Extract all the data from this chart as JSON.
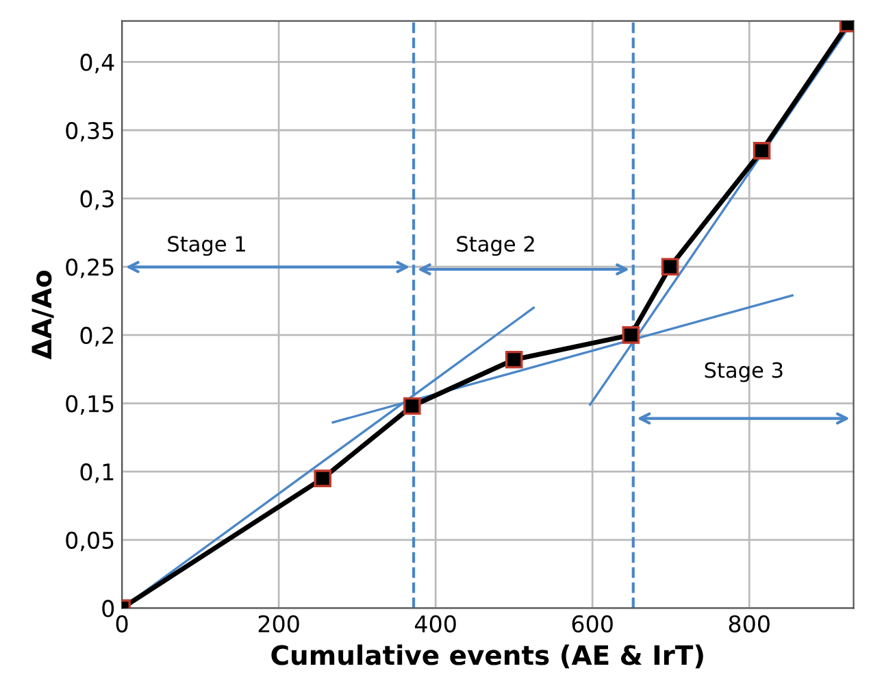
{
  "chart_data": {
    "type": "line",
    "xlabel": "Cumulative events (AE & IrT)",
    "ylabel": "ΔA/Ao",
    "series": [
      {
        "color": "#000000",
        "marker": "square",
        "x": [
          0,
          256,
          370,
          500,
          649,
          699,
          816,
          926
        ],
        "values": [
          0,
          0.095,
          0.148,
          0.182,
          0.2,
          0.25,
          0.335,
          0.428
        ]
      },
      {
        "color": "#4a86c8",
        "marker": "none",
        "x": [
          0,
          525
        ],
        "values": [
          0,
          0.22
        ]
      },
      {
        "color": "#4a86c8",
        "marker": "none",
        "x": [
          269,
          855
        ],
        "values": [
          0.136,
          0.229
        ]
      },
      {
        "color": "#4a86c8",
        "marker": "none",
        "x": [
          597,
          930
        ],
        "values": [
          0.149,
          0.428
        ]
      }
    ],
    "xlim": [
      0,
      933
    ],
    "ylim": [
      0,
      0.43
    ],
    "xticks": [
      0,
      200,
      400,
      600,
      800
    ],
    "yticks": [
      0,
      {
        "value": 0.05,
        "label": "0,05"
      },
      {
        "value": 0.1,
        "label": "0,1"
      },
      {
        "value": 0.15,
        "label": "0,15"
      },
      {
        "value": 0.2,
        "label": "0,2"
      },
      {
        "value": 0.25,
        "label": "0,25"
      },
      {
        "value": 0.3,
        "label": "0,3"
      },
      {
        "value": 0.35,
        "label": "0,35"
      },
      {
        "value": 0.4,
        "label": "0,4"
      }
    ],
    "ref_lines": [
      {
        "axis": "x",
        "value": 372,
        "color": "#4a86c8",
        "line_style": "dashed"
      },
      {
        "axis": "x",
        "value": 652,
        "color": "#4a86c8",
        "line_style": "dashed"
      }
    ],
    "annotations": [
      "Stage 1",
      "Stage 2",
      "Stage 3"
    ],
    "grid": true
  }
}
